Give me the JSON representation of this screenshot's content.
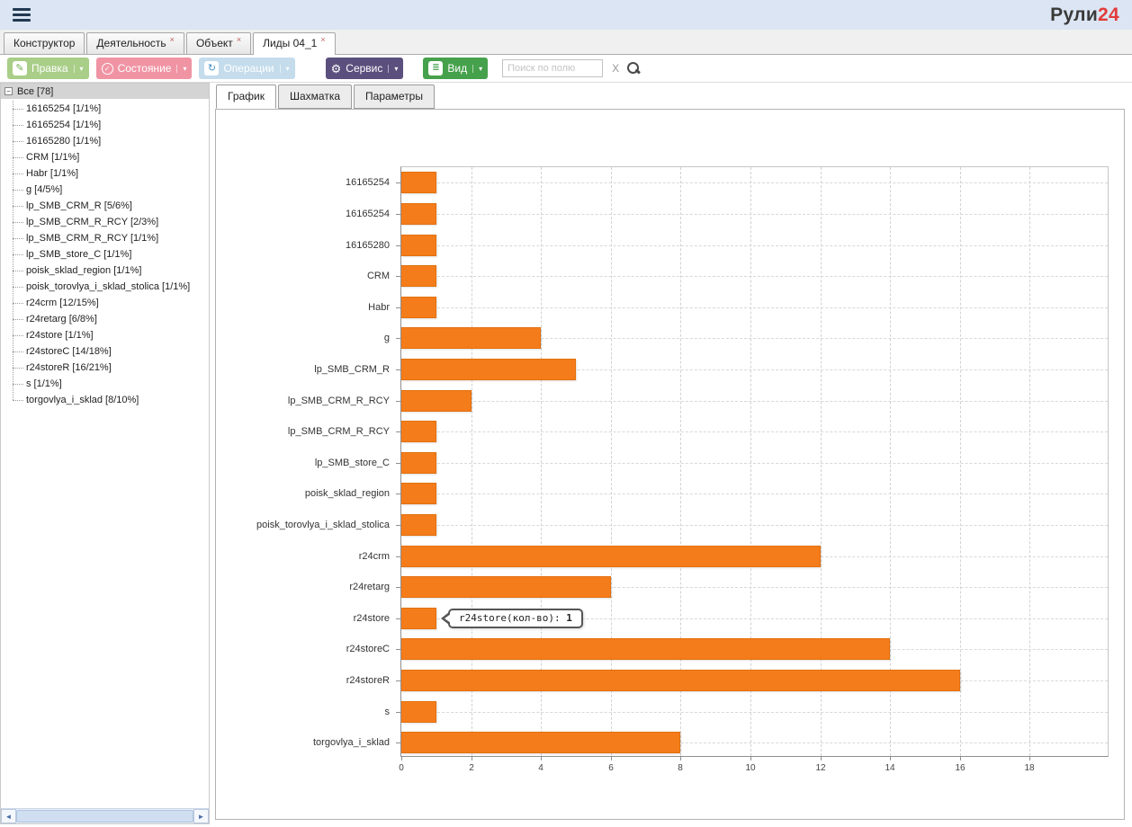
{
  "header": {
    "logo": {
      "text_dark": "Рули",
      "text_red": "24"
    }
  },
  "tabs": [
    {
      "label": "Конструктор",
      "closable": false,
      "active": false
    },
    {
      "label": "Деятельность",
      "closable": true,
      "active": false
    },
    {
      "label": "Объект",
      "closable": true,
      "active": false
    },
    {
      "label": "Лиды 04_1",
      "closable": true,
      "active": true
    }
  ],
  "toolbar": {
    "edit": "Правка",
    "status": "Состояние",
    "operations": "Операции",
    "service": "Сервис",
    "view": "Вид",
    "search_placeholder": "Поиск по полю",
    "clear": "X"
  },
  "icons": {
    "menu": "hamburger-icon",
    "edit": "pencil-icon",
    "status": "check-circle-icon",
    "operations": "refresh-icon",
    "service": "gear-icon",
    "view": "list-icon",
    "dropdown": "caret-down-icon",
    "search": "magnifier-icon",
    "tree_collapse": "collapse-minus-icon",
    "scroll_left": "arrow-left-icon",
    "scroll_right": "arrow-right-icon"
  },
  "colors": {
    "brand_red": "#e23b3b",
    "edit_green": "#a9ce88",
    "status_pink": "#f094a4",
    "operations_blue": "#c4dcec",
    "service_purple": "#5a4f7d",
    "view_green": "#46a14c",
    "bar_orange": "#f57c1b"
  },
  "tree": {
    "root_label": "Все [78]",
    "items": [
      "16165254 [1/1%]",
      "16165254 [1/1%]",
      "16165280 [1/1%]",
      "CRM [1/1%]",
      "Habr [1/1%]",
      "g [4/5%]",
      "lp_SMB_CRM_R [5/6%]",
      "lp_SMB_CRM_R_RCY [2/3%]",
      "lp_SMB_CRM_R_RCY [1/1%]",
      "lp_SMB_store_C [1/1%]",
      "poisk_sklad_region [1/1%]",
      "poisk_torovlya_i_sklad_stolica [1/1%]",
      "r24crm [12/15%]",
      "r24retarg [6/8%]",
      "r24store [1/1%]",
      "r24storeC [14/18%]",
      "r24storeR [16/21%]",
      "s [1/1%]",
      "torgovlya_i_sklad [8/10%]"
    ]
  },
  "content_tabs": [
    {
      "label": "График",
      "active": true
    },
    {
      "label": "Шахматка",
      "active": false
    },
    {
      "label": "Параметры",
      "active": false
    }
  ],
  "chart_data": {
    "type": "bar",
    "orientation": "horizontal",
    "title": "",
    "xlabel": "",
    "ylabel": "",
    "categories": [
      "16165254",
      "16165254",
      "16165280",
      "CRM",
      "Habr",
      "g",
      "lp_SMB_CRM_R",
      "lp_SMB_CRM_R_RCY",
      "lp_SMB_CRM_R_RCY",
      "lp_SMB_store_C",
      "poisk_sklad_region",
      "poisk_torovlya_i_sklad_stolica",
      "r24crm",
      "r24retarg",
      "r24store",
      "r24storeC",
      "r24storeR",
      "s",
      "torgovlya_i_sklad"
    ],
    "values": [
      1,
      1,
      1,
      1,
      1,
      4,
      5,
      2,
      1,
      1,
      1,
      1,
      12,
      6,
      1,
      14,
      16,
      1,
      8
    ],
    "xlim": [
      0,
      18
    ],
    "x_ticks": [
      0,
      2,
      4,
      6,
      8,
      10,
      12,
      14,
      16,
      18
    ],
    "grid": "dashed",
    "legend": "none",
    "bar_color": "#f57c1b",
    "tooltip": {
      "label": "r24store(кол-во):",
      "value": "1",
      "category_index": 14
    }
  }
}
